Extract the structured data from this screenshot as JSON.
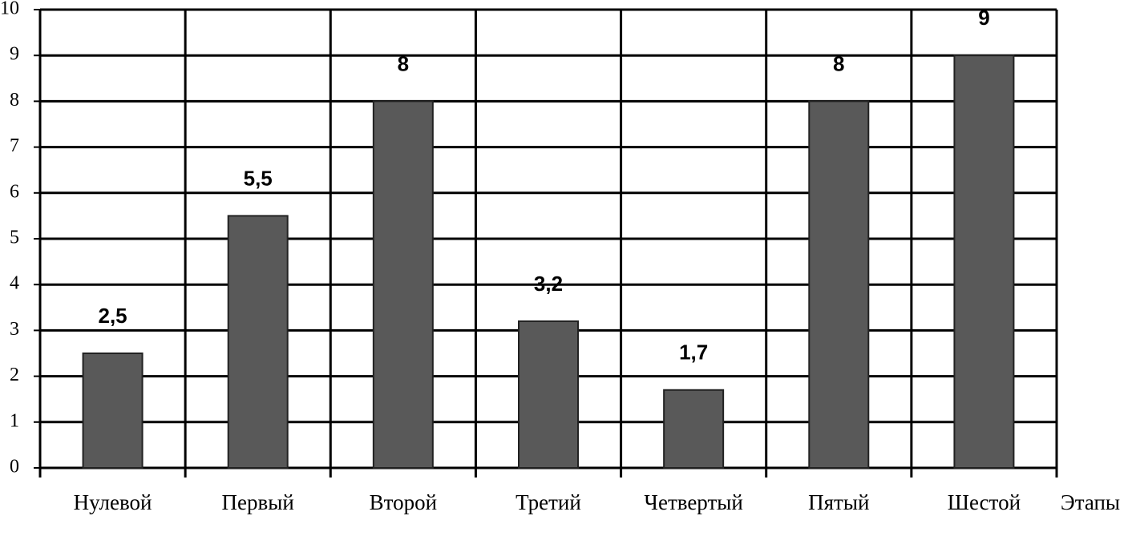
{
  "chart_data": {
    "type": "bar",
    "x_label": "Этапы",
    "categories": [
      "Нулевой",
      "Первый",
      "Второй",
      "Третий",
      "Четвертый",
      "Пятый",
      "Шестой"
    ],
    "values": [
      2.5,
      5.5,
      8,
      3.2,
      1.7,
      8,
      9
    ],
    "value_labels": [
      "2,5",
      "5,5",
      "8",
      "3,2",
      "1,7",
      "8",
      "9"
    ],
    "color": "#595959",
    "ylim": [
      0,
      10
    ],
    "yticks": [
      0,
      1,
      2,
      3,
      4,
      5,
      6,
      7,
      8,
      9,
      10
    ],
    "grid": true
  }
}
